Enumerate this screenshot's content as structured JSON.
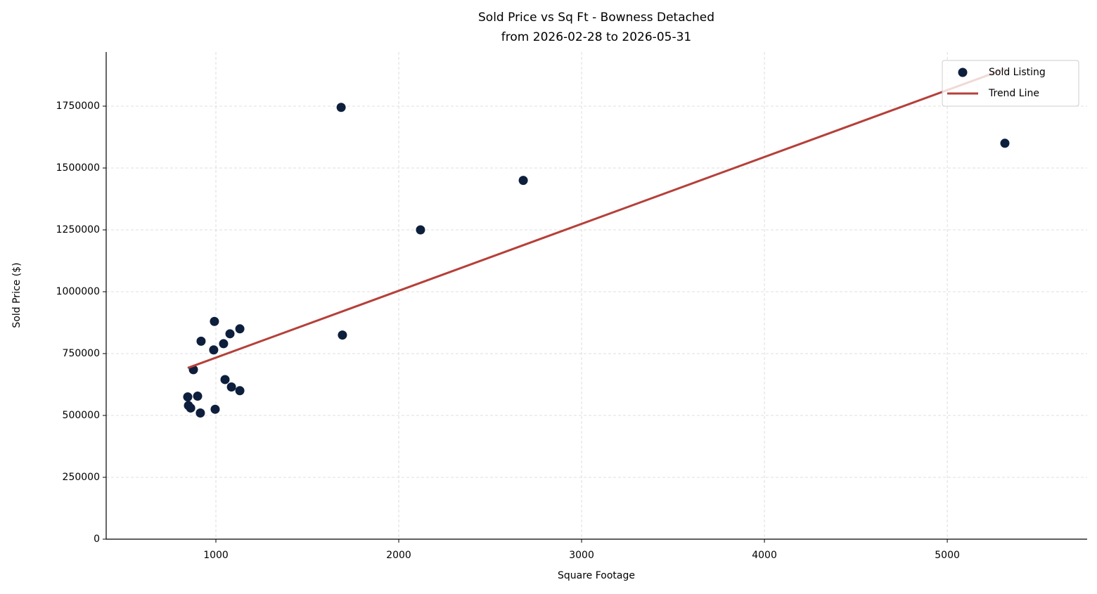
{
  "chart_data": {
    "type": "scatter",
    "title": "Sold Price vs Sq Ft - Bowness Detached",
    "subtitle": "from 2026-02-28 to 2026-05-31",
    "x_label": "Square Footage",
    "y_label": "Sold Price ($)",
    "xlim": [
      400,
      5765
    ],
    "xticks": [
      1000,
      2000,
      3000,
      4000,
      5000
    ],
    "ylim": [
      0,
      1968750
    ],
    "yticks": [
      0,
      250000,
      500000,
      750000,
      1000000,
      1250000,
      1500000,
      1750000
    ],
    "grid": true,
    "legend": "upper right",
    "series": [
      {
        "name": "Sold Listing",
        "type": "scatter",
        "color": "#0d1f3c",
        "x": [
          1685,
          5315,
          2681,
          2119,
          1692,
          992,
          1131,
          1077,
          919,
          1042,
          988,
          877,
          1050,
          1085,
          1131,
          846,
          900,
          850,
          862,
          915,
          996
        ],
        "values": [
          1745000,
          1600000,
          1450000,
          1250000,
          825000,
          880000,
          850000,
          830000,
          800000,
          790000,
          765000,
          685000,
          645000,
          615000,
          600000,
          575000,
          578000,
          540000,
          530000,
          510000,
          525000
        ]
      },
      {
        "name": "Trend Line",
        "type": "line",
        "color": "#b5403a",
        "x": [
          846,
          5315
        ],
        "values": [
          692000,
          1900000
        ]
      }
    ]
  }
}
